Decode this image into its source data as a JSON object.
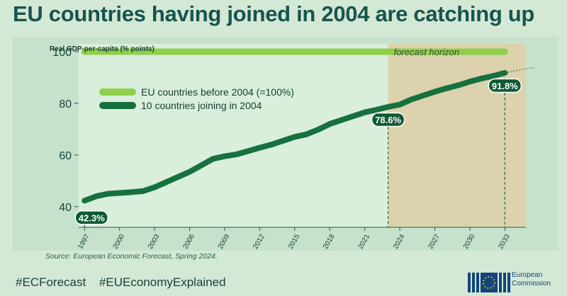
{
  "title": "EU countries having joined in 2004 are catching up",
  "source": "Source: European Economic Forecast, Spring 2024.",
  "hashtags": [
    "#ECForecast",
    "#EUEconomyExplained"
  ],
  "logo": {
    "line1": "European",
    "line2": "Commission"
  },
  "colors": {
    "title": "#17544f",
    "light_series": "#8fcf49",
    "dark_series": "#16713e",
    "forecast_band": "#dcd2ad",
    "panel": "#c7e2cc"
  },
  "chart_data": {
    "type": "line",
    "ylabel": "Real GDP-per-capita (% points)",
    "y_ticks": [
      40,
      60,
      80,
      100
    ],
    "ylim": [
      32,
      103
    ],
    "xlim": [
      1996.5,
      2034.8
    ],
    "x_ticks": [
      1997,
      2000,
      2003,
      2006,
      2009,
      2012,
      2015,
      2018,
      2021,
      2024,
      2027,
      2030,
      2033
    ],
    "forecast_start": 2023,
    "forecast_label": "forecast horizon",
    "series": [
      {
        "name": "EU countries before 2004 (=100%)",
        "color": "#8fcf49",
        "x": [
          1997,
          2033
        ],
        "y": [
          100,
          100
        ]
      },
      {
        "name": "10 countries joining in 2004",
        "color": "#16713e",
        "x": [
          1997,
          1998,
          1999,
          2000,
          2001,
          2002,
          2003,
          2004,
          2005,
          2006,
          2007,
          2008,
          2009,
          2010,
          2011,
          2012,
          2013,
          2014,
          2015,
          2016,
          2017,
          2018,
          2019,
          2020,
          2021,
          2022,
          2023,
          2024,
          2025,
          2026,
          2027,
          2028,
          2029,
          2030,
          2031,
          2032,
          2033
        ],
        "y": [
          42.3,
          44,
          45,
          45.3,
          45.6,
          46,
          47.5,
          49.5,
          51.5,
          53.5,
          56,
          58.5,
          59.5,
          60.2,
          61.5,
          62.8,
          64,
          65.5,
          67,
          68,
          69.8,
          72,
          73.5,
          75,
          76.5,
          77.5,
          78.6,
          79.5,
          81.5,
          83,
          84.5,
          85.8,
          87,
          88.4,
          89.6,
          90.6,
          91.8
        ]
      }
    ],
    "annotations": [
      {
        "x": 1997,
        "y": 42.3,
        "label": "42.3%"
      },
      {
        "x": 2023,
        "y": 78.6,
        "label": "78.6%"
      },
      {
        "x": 2033,
        "y": 91.8,
        "label": "91.8%"
      }
    ]
  }
}
